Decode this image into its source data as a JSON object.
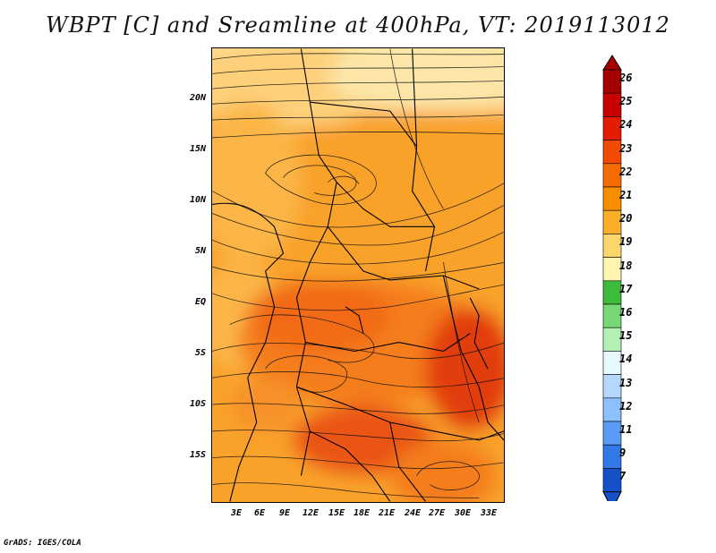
{
  "title": "WBPT [C] and Sreamline at 400hPa, VT: 2019113012",
  "footer": "GrADS: IGES/COLA",
  "lat_labels": [
    "20N",
    "15N",
    "10N",
    "5N",
    "EQ",
    "5S",
    "10S",
    "15S"
  ],
  "lon_labels": [
    "3E",
    "6E",
    "9E",
    "12E",
    "15E",
    "18E",
    "21E",
    "24E",
    "27E",
    "30E",
    "33E"
  ],
  "colorbar": {
    "labels": [
      "26",
      "25",
      "24",
      "23",
      "22",
      "21",
      "20",
      "19",
      "18",
      "17",
      "16",
      "15",
      "14",
      "13",
      "12",
      "11",
      "9",
      "7"
    ],
    "colors": [
      "#a50000",
      "#c80000",
      "#e41c00",
      "#f04b00",
      "#f46c00",
      "#f98d00",
      "#fbae27",
      "#fdd66b",
      "#fff5b0",
      "#3cbb3c",
      "#78d878",
      "#b4f0b4",
      "#e8f8ff",
      "#b4d8ff",
      "#8cc0ff",
      "#5a9cf5",
      "#3278e6",
      "#1450c8"
    ]
  },
  "palette": {
    "background": "#ffffff",
    "map_hot": "#e23d10",
    "map_warm": "#f47d1a",
    "map_mid": "#f9a22a",
    "map_light": "#fdd07a",
    "map_pale": "#fef0b4"
  }
}
